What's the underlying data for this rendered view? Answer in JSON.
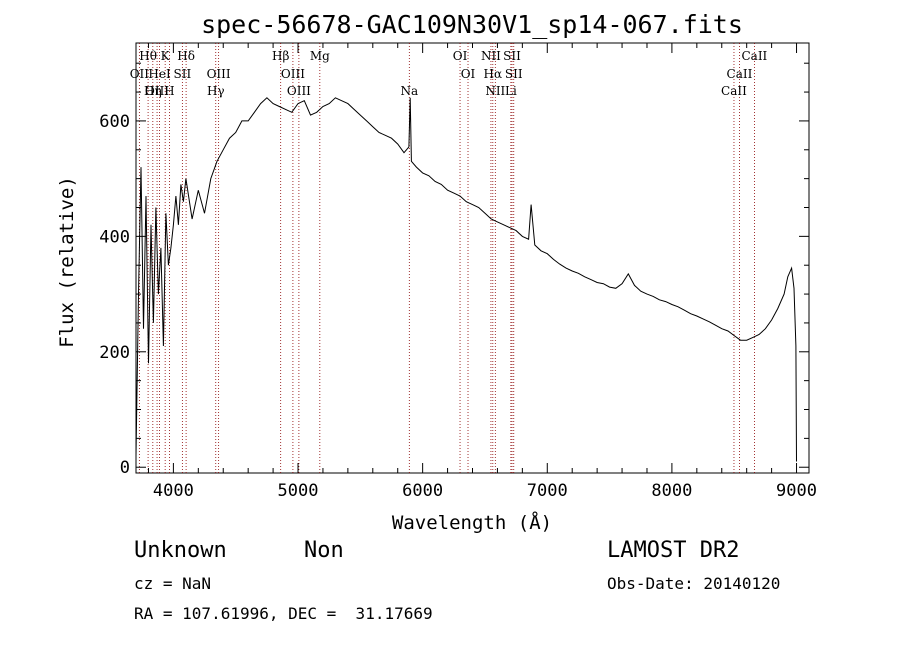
{
  "chart_data": {
    "type": "line",
    "title": "spec-56678-GAC109N30V1_sp14-067.fits",
    "xlabel": "Wavelength (Å)",
    "ylabel": "Flux (relative)",
    "xlim": [
      3700,
      9100
    ],
    "ylim": [
      -10,
      735
    ],
    "x_ticks": [
      4000,
      5000,
      6000,
      7000,
      8000,
      9000
    ],
    "x_tick_labels": [
      "4000",
      "5000",
      "6000",
      "7000",
      "8000",
      "9000"
    ],
    "y_ticks": [
      0,
      200,
      400,
      600
    ],
    "y_tick_labels": [
      "0",
      "200",
      "400",
      "600"
    ],
    "grid": false,
    "line_color": "#000000",
    "marker_line_color": "#8b0000",
    "spectral_lines": [
      {
        "label": "Hθ",
        "wavelength": 3797,
        "row": 0
      },
      {
        "label": "K",
        "wavelength": 3934,
        "row": 0
      },
      {
        "label": "Hδ",
        "wavelength": 4102,
        "row": 0
      },
      {
        "label": "Hβ",
        "wavelength": 4861,
        "row": 0
      },
      {
        "label": "Mg",
        "wavelength": 5175,
        "row": 0
      },
      {
        "label": "OI",
        "wavelength": 6300,
        "row": 0
      },
      {
        "label": "NII",
        "wavelength": 6548,
        "row": 0
      },
      {
        "label": "SII",
        "wavelength": 6717,
        "row": 0
      },
      {
        "label": "CaII",
        "wavelength": 8662,
        "row": 0
      },
      {
        "label": "OII",
        "wavelength": 3727,
        "row": 1
      },
      {
        "label": "HeI",
        "wavelength": 3889,
        "row": 1
      },
      {
        "label": "SII",
        "wavelength": 4072,
        "row": 1
      },
      {
        "label": "OIII",
        "wavelength": 4363,
        "row": 1
      },
      {
        "label": "OIII",
        "wavelength": 4959,
        "row": 1
      },
      {
        "label": "OI",
        "wavelength": 6364,
        "row": 1
      },
      {
        "label": "Hα",
        "wavelength": 6563,
        "row": 1
      },
      {
        "label": "SII",
        "wavelength": 6731,
        "row": 1
      },
      {
        "label": "CaII",
        "wavelength": 8542,
        "row": 1
      },
      {
        "label": "OIII",
        "wavelength": 3869,
        "row": 2
      },
      {
        "label": "Hη",
        "wavelength": 3835,
        "row": 2
      },
      {
        "label": "H",
        "wavelength": 3968,
        "row": 2
      },
      {
        "label": "Hγ",
        "wavelength": 4340,
        "row": 2
      },
      {
        "label": "OIII",
        "wavelength": 5007,
        "row": 2
      },
      {
        "label": "Na",
        "wavelength": 5893,
        "row": 2
      },
      {
        "label": "NII",
        "wavelength": 6583,
        "row": 2
      },
      {
        "label": "Li",
        "wavelength": 6708,
        "row": 2
      },
      {
        "label": "CaII",
        "wavelength": 8498,
        "row": 2
      }
    ],
    "series": [
      {
        "x": [
          3700,
          3720,
          3740,
          3760,
          3780,
          3800,
          3820,
          3840,
          3860,
          3880,
          3900,
          3920,
          3940,
          3960,
          3980,
          4000,
          4020,
          4040,
          4060,
          4080,
          4100,
          4150,
          4200,
          4250,
          4300,
          4350,
          4400,
          4450,
          4500,
          4550,
          4600,
          4650,
          4700,
          4750,
          4800,
          4850,
          4900,
          4950,
          5000,
          5050,
          5100,
          5150,
          5200,
          5250,
          5300,
          5350,
          5400,
          5450,
          5500,
          5550,
          5600,
          5650,
          5700,
          5750,
          5800,
          5850,
          5890,
          5900,
          5910,
          5950,
          6000,
          6050,
          6100,
          6150,
          6200,
          6250,
          6300,
          6350,
          6400,
          6450,
          6500,
          6550,
          6600,
          6650,
          6700,
          6750,
          6800,
          6850,
          6870,
          6900,
          6950,
          7000,
          7050,
          7100,
          7150,
          7200,
          7250,
          7300,
          7350,
          7400,
          7450,
          7500,
          7550,
          7600,
          7650,
          7700,
          7750,
          7800,
          7850,
          7900,
          7950,
          8000,
          8050,
          8100,
          8150,
          8200,
          8250,
          8300,
          8350,
          8400,
          8450,
          8500,
          8550,
          8600,
          8650,
          8700,
          8750,
          8800,
          8850,
          8900,
          8930,
          8960,
          8980,
          8995,
          9000
        ],
        "y": [
          20,
          300,
          520,
          240,
          470,
          180,
          420,
          250,
          450,
          300,
          380,
          210,
          440,
          350,
          380,
          420,
          470,
          420,
          490,
          460,
          500,
          430,
          480,
          440,
          500,
          530,
          550,
          570,
          580,
          600,
          600,
          615,
          630,
          640,
          630,
          625,
          620,
          615,
          630,
          635,
          610,
          615,
          625,
          630,
          640,
          635,
          630,
          620,
          610,
          600,
          590,
          580,
          575,
          570,
          560,
          545,
          555,
          640,
          530,
          520,
          510,
          505,
          495,
          490,
          480,
          475,
          470,
          460,
          455,
          450,
          440,
          430,
          425,
          420,
          415,
          410,
          400,
          395,
          455,
          385,
          375,
          370,
          360,
          352,
          345,
          340,
          336,
          330,
          325,
          320,
          318,
          312,
          310,
          318,
          335,
          315,
          305,
          300,
          296,
          290,
          287,
          282,
          278,
          272,
          266,
          262,
          257,
          252,
          246,
          240,
          236,
          228,
          220,
          220,
          225,
          230,
          240,
          255,
          275,
          300,
          330,
          345,
          310,
          210,
          10
        ]
      }
    ]
  },
  "info": {
    "object_class": "Unknown",
    "subclass": "Non",
    "survey": "LAMOST DR2",
    "redshift": "cz = NaN",
    "obs_date": "Obs-Date: 20140120",
    "coords": "RA = 107.61996, DEC =  31.17669"
  }
}
